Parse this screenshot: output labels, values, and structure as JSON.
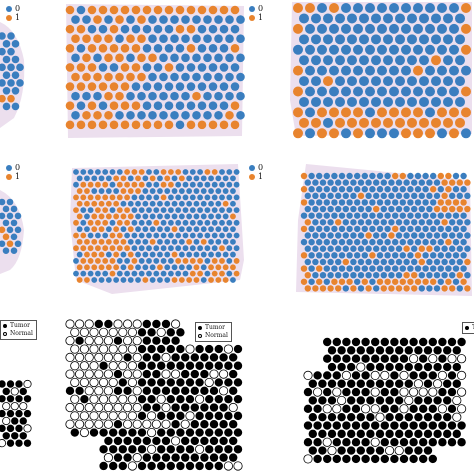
{
  "colors": {
    "class_0": "#3a7ebf",
    "class_1": "#e8842e",
    "tissue_bg": "#e9dcec",
    "tumor": "#000000",
    "normal": "#ffffff"
  },
  "legend_numeric": {
    "label_0": "0",
    "label_1": "1"
  },
  "legend_tissue": {
    "label_tumor": "Tumor",
    "label_normal": "Normal"
  },
  "rows": [
    {
      "name": "row-prediction-1",
      "style": "spot-overlay"
    },
    {
      "name": "row-prediction-2",
      "style": "spot-overlay"
    },
    {
      "name": "row-ground-truth",
      "style": "tumor-normal-map"
    }
  ]
}
